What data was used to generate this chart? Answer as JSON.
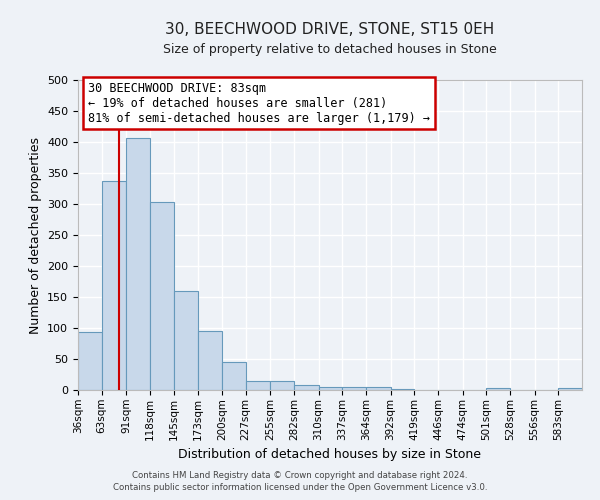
{
  "title": "30, BEECHWOOD DRIVE, STONE, ST15 0EH",
  "subtitle": "Size of property relative to detached houses in Stone",
  "xlabel": "Distribution of detached houses by size in Stone",
  "ylabel": "Number of detached properties",
  "bar_color": "#c8d8ea",
  "bar_edge_color": "#6699bb",
  "background_color": "#eef2f7",
  "grid_color": "#ffffff",
  "bin_labels": [
    "36sqm",
    "63sqm",
    "91sqm",
    "118sqm",
    "145sqm",
    "173sqm",
    "200sqm",
    "227sqm",
    "255sqm",
    "282sqm",
    "310sqm",
    "337sqm",
    "364sqm",
    "392sqm",
    "419sqm",
    "446sqm",
    "474sqm",
    "501sqm",
    "528sqm",
    "556sqm",
    "583sqm"
  ],
  "bar_values": [
    93,
    337,
    407,
    303,
    160,
    95,
    45,
    15,
    15,
    8,
    5,
    5,
    5,
    2,
    0,
    0,
    0,
    3,
    0,
    0,
    3
  ],
  "bin_edges": [
    36,
    63,
    91,
    118,
    145,
    173,
    200,
    227,
    255,
    282,
    310,
    337,
    364,
    392,
    419,
    446,
    474,
    501,
    528,
    556,
    583,
    610
  ],
  "vline_x": 83,
  "vline_color": "#cc0000",
  "annotation_text": "30 BEECHWOOD DRIVE: 83sqm\n← 19% of detached houses are smaller (281)\n81% of semi-detached houses are larger (1,179) →",
  "annotation_box_color": "#ffffff",
  "annotation_box_edge": "#cc0000",
  "ylim": [
    0,
    500
  ],
  "yticks": [
    0,
    50,
    100,
    150,
    200,
    250,
    300,
    350,
    400,
    450,
    500
  ],
  "footer_line1": "Contains HM Land Registry data © Crown copyright and database right 2024.",
  "footer_line2": "Contains public sector information licensed under the Open Government Licence v3.0."
}
